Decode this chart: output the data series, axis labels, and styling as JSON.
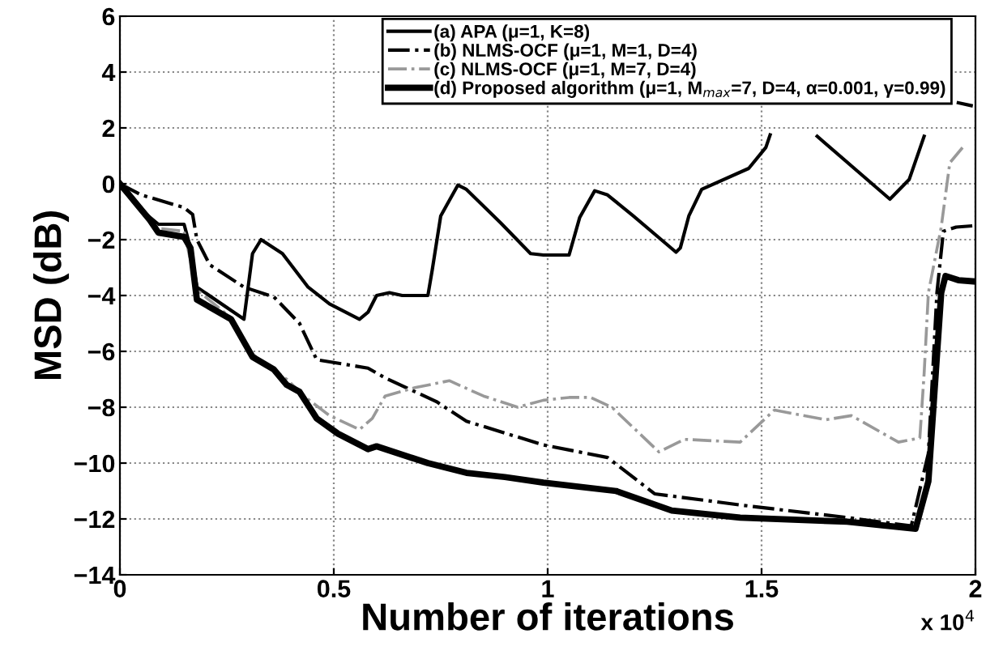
{
  "chart_data": {
    "type": "line",
    "xlabel": "Number of iterations",
    "ylabel": "MSD (dB)",
    "xlim": [
      0,
      2
    ],
    "ylim": [
      -14,
      6
    ],
    "xticks": [
      0,
      0.5,
      1,
      1.5,
      2
    ],
    "yticks": [
      -14,
      -12,
      -10,
      -8,
      -6,
      -4,
      -2,
      0,
      2,
      4,
      6
    ],
    "annotations": [
      "x 10$^{4}$"
    ],
    "grid": true,
    "legend": "top right",
    "series": [
      {
        "name": "(a) APA (μ=1, K=8)",
        "color": "#000000",
        "line_style": "solid",
        "x": [
          0,
          0.07,
          0.09,
          0.15,
          0.165,
          0.18,
          0.29,
          0.31,
          0.33,
          0.38,
          0.44,
          0.49,
          0.56,
          0.58,
          0.6,
          0.63,
          0.66,
          0.72,
          0.73,
          0.75,
          0.79,
          0.81,
          0.89,
          0.96,
          0.99,
          1.05,
          1.075,
          1.11,
          1.14,
          1.2,
          1.3,
          1.31,
          1.33,
          1.36,
          1.47,
          1.51,
          1.52,
          1.53,
          1.62,
          1.63,
          1.8,
          1.845,
          1.88,
          1.89,
          1.96,
          1.99
        ],
        "values": [
          -0.1,
          -1.2,
          -1.45,
          -1.45,
          -2.3,
          -3.7,
          -4.85,
          -2.5,
          -2.0,
          -2.5,
          -3.7,
          -4.3,
          -4.85,
          -4.6,
          -4.0,
          -3.9,
          -4.0,
          -4.0,
          -3.1,
          -1.15,
          -0.05,
          -0.2,
          -1.4,
          -2.5,
          -2.55,
          -2.55,
          -1.2,
          -0.25,
          -0.4,
          -1.15,
          -2.45,
          -2.3,
          -1.15,
          -0.2,
          0.55,
          1.3,
          1.75,
          null,
          null,
          1.7,
          -0.55,
          0.15,
          1.7,
          null,
          2.9,
          2.8
        ]
      },
      {
        "name": "(b) NLMS-OCF (μ=1, M=1, D=4)",
        "color": "#000000",
        "line_style": "dashdot",
        "x": [
          0,
          0.05,
          0.15,
          0.17,
          0.18,
          0.21,
          0.29,
          0.36,
          0.42,
          0.46,
          0.58,
          0.62,
          0.74,
          0.81,
          0.99,
          1.14,
          1.25,
          1.45,
          1.7,
          1.85,
          1.89,
          1.91,
          1.925,
          1.955,
          2.0
        ],
        "values": [
          0,
          -0.4,
          -0.85,
          -1.1,
          -2.0,
          -2.9,
          -3.7,
          -4.05,
          -5.0,
          -6.3,
          -6.6,
          -6.95,
          -7.8,
          -8.5,
          -9.35,
          -9.8,
          -11.1,
          -11.5,
          -11.95,
          -12.25,
          -9.65,
          -3.9,
          -1.7,
          -1.55,
          -1.5
        ]
      },
      {
        "name": "(c) NLMS-OCF (μ=1, M=7, D=4)",
        "color": "#999999",
        "line_style": "dashdot",
        "x": [
          0,
          0.09,
          0.15,
          0.18,
          0.26,
          0.31,
          0.39,
          0.43,
          0.49,
          0.56,
          0.59,
          0.62,
          0.69,
          0.77,
          0.85,
          0.93,
          0.99,
          1.05,
          1.1,
          1.15,
          1.26,
          1.32,
          1.45,
          1.53,
          1.65,
          1.71,
          1.82,
          1.87,
          1.88,
          1.89,
          1.92,
          1.94,
          1.97
        ],
        "values": [
          0,
          -1.6,
          -1.7,
          -3.8,
          -4.8,
          -6.1,
          -7.0,
          -7.6,
          -8.3,
          -8.8,
          -8.4,
          -7.6,
          -7.3,
          -7.05,
          -7.6,
          -8.0,
          -7.75,
          -7.65,
          -7.65,
          -8.0,
          -9.6,
          -9.15,
          -9.25,
          -8.1,
          -8.45,
          -8.3,
          -9.25,
          -9.1,
          -6.8,
          -3.9,
          -1.55,
          0.75,
          1.3
        ]
      },
      {
        "name": "(d) Proposed algorithm (μ=1, M$_{max}$=7, D=4, α=0.001, γ=0.99)",
        "color": "#000000",
        "line_style": "solid",
        "x": [
          0,
          0.07,
          0.09,
          0.15,
          0.165,
          0.18,
          0.26,
          0.31,
          0.36,
          0.39,
          0.42,
          0.46,
          0.51,
          0.58,
          0.6,
          0.72,
          0.81,
          0.9,
          0.99,
          1.16,
          1.29,
          1.45,
          1.7,
          1.86,
          1.89,
          1.92,
          1.93,
          1.96,
          2.0
        ],
        "values": [
          0,
          -1.3,
          -1.75,
          -1.9,
          -2.3,
          -4.15,
          -4.85,
          -6.2,
          -6.65,
          -7.2,
          -7.45,
          -8.4,
          -8.95,
          -9.5,
          -9.4,
          -10.0,
          -10.35,
          -10.5,
          -10.7,
          -11.0,
          -11.7,
          -11.95,
          -12.1,
          -12.35,
          -10.65,
          -3.9,
          -3.3,
          -3.45,
          -3.5
        ]
      }
    ]
  }
}
